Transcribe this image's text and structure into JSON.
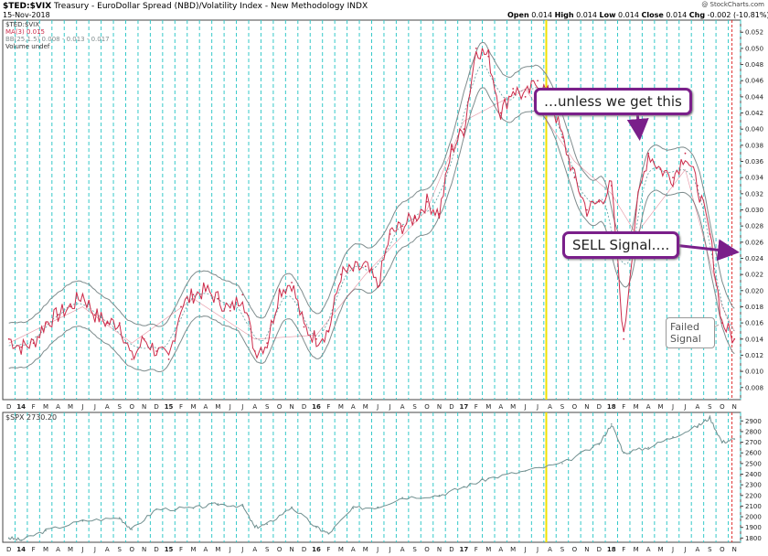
{
  "header": {
    "symbol": "$TED:$VIX",
    "description": "Treasury - EuroDollar Spread (NBD)/Volatility Index - New Methodology INDX",
    "date": "15-Nov-2018",
    "watermark": "@ StockCharts.com",
    "ohlc": {
      "open_label": "Open",
      "open": "0.014",
      "high_label": "High",
      "high": "0.014",
      "low_label": "Low",
      "low": "0.014",
      "close_label": "Close",
      "close": "0.014",
      "chg_label": "Chg",
      "chg": "-0.002 (-10.81%)"
    }
  },
  "legend": {
    "main": "$TED:$VIX",
    "ma": "MA(3) 0.015",
    "bb": "BB(25,1.5) 0.008 - 0.013 - 0.017",
    "volume": "Volume undef"
  },
  "lower_panel": {
    "label": "$SPX 2730.20"
  },
  "annotations": {
    "unless": "…unless we get this",
    "sell": "SELL Signal….",
    "failed": "Failed Signal"
  },
  "colors": {
    "ratio_line": "#cc2b4a",
    "bands": "#7f8c8d",
    "mid_band": "#5f9ea0",
    "spx_line": "#6f8f8f",
    "vgrid": "#36c9c9",
    "highlight": "#f2e100",
    "callout": "#7a1f8a",
    "red_marker": "#e03030"
  },
  "x_axis_labels": [
    "D",
    "14",
    "F",
    "M",
    "A",
    "M",
    "J",
    "J",
    "A",
    "S",
    "O",
    "N",
    "D",
    "15",
    "F",
    "M",
    "A",
    "M",
    "J",
    "J",
    "A",
    "S",
    "O",
    "N",
    "D",
    "16",
    "F",
    "M",
    "A",
    "M",
    "J",
    "J",
    "A",
    "S",
    "O",
    "N",
    "D",
    "17",
    "F",
    "M",
    "A",
    "M",
    "J",
    "J",
    "A",
    "S",
    "O",
    "N",
    "D",
    "18",
    "F",
    "M",
    "A",
    "M",
    "J",
    "J",
    "A",
    "S",
    "O",
    "N"
  ],
  "bold_x_labels": [
    "14",
    "15",
    "16",
    "17",
    "18"
  ],
  "chart_data": [
    {
      "type": "line",
      "title": "$TED:$VIX",
      "x_range": [
        "2013-12",
        "2018-11"
      ],
      "ylim": [
        0.0065,
        0.0535
      ],
      "y_ticks": [
        "0.008",
        "0.010",
        "0.012",
        "0.014",
        "0.016",
        "0.018",
        "0.020",
        "0.022",
        "0.024",
        "0.026",
        "0.028",
        "0.030",
        "0.032",
        "0.034",
        "0.036",
        "0.038",
        "0.040",
        "0.042",
        "0.044",
        "0.046",
        "0.048",
        "0.050",
        "0.052",
        "0.054"
      ],
      "series": [
        {
          "name": "$TED:$VIX",
          "x": [
            "2013-12",
            "2014-01",
            "2014-02",
            "2014-03",
            "2014-04",
            "2014-05",
            "2014-06",
            "2014-07",
            "2014-08",
            "2014-09",
            "2014-10",
            "2014-11",
            "2014-12",
            "2015-01",
            "2015-02",
            "2015-03",
            "2015-04",
            "2015-05",
            "2015-06",
            "2015-07",
            "2015-08",
            "2015-09",
            "2015-10",
            "2015-11",
            "2015-12",
            "2016-01",
            "2016-02",
            "2016-03",
            "2016-04",
            "2016-05",
            "2016-06",
            "2016-07",
            "2016-08",
            "2016-09",
            "2016-10",
            "2016-11",
            "2016-12",
            "2017-01",
            "2017-02",
            "2017-03",
            "2017-04",
            "2017-05",
            "2017-06",
            "2017-07",
            "2017-08",
            "2017-09",
            "2017-10",
            "2017-11",
            "2017-12",
            "2018-01",
            "2018-02",
            "2018-03",
            "2018-04",
            "2018-05",
            "2018-06",
            "2018-07",
            "2018-08",
            "2018-09",
            "2018-10",
            "2018-11"
          ],
          "values": [
            0.014,
            0.013,
            0.0135,
            0.016,
            0.017,
            0.018,
            0.0195,
            0.017,
            0.016,
            0.016,
            0.0115,
            0.014,
            0.0125,
            0.0115,
            0.018,
            0.0195,
            0.02,
            0.019,
            0.0175,
            0.0195,
            0.0125,
            0.0135,
            0.02,
            0.021,
            0.0155,
            0.014,
            0.015,
            0.022,
            0.0225,
            0.023,
            0.0205,
            0.027,
            0.028,
            0.029,
            0.031,
            0.0295,
            0.0375,
            0.04,
            0.05,
            0.049,
            0.042,
            0.045,
            0.044,
            0.046,
            0.044,
            0.039,
            0.034,
            0.03,
            0.031,
            0.033,
            0.014,
            0.03,
            0.037,
            0.035,
            0.034,
            0.037,
            0.033,
            0.027,
            0.016,
            0.014
          ]
        },
        {
          "name": "MA(3)",
          "x": [
            "2013-12",
            "2014-06",
            "2014-10",
            "2015-03",
            "2015-08",
            "2016-01",
            "2016-05",
            "2016-10",
            "2017-01",
            "2017-06",
            "2017-10",
            "2018-01",
            "2018-03",
            "2018-07",
            "2018-10",
            "2018-11"
          ],
          "values": [
            0.0135,
            0.018,
            0.0135,
            0.019,
            0.014,
            0.0145,
            0.022,
            0.03,
            0.041,
            0.045,
            0.036,
            0.032,
            0.027,
            0.035,
            0.018,
            0.015
          ]
        }
      ]
    },
    {
      "type": "line",
      "title": "$SPX 2730.20",
      "x_range": [
        "2013-12",
        "2018-11"
      ],
      "ylim": [
        1760,
        2980
      ],
      "y_ticks": [
        "1800",
        "1900",
        "2000",
        "2100",
        "2200",
        "2300",
        "2400",
        "2500",
        "2600",
        "2700",
        "2800",
        "2900"
      ],
      "series": [
        {
          "name": "$SPX",
          "x": [
            "2013-12",
            "2014-01",
            "2014-03",
            "2014-06",
            "2014-09",
            "2014-10",
            "2014-12",
            "2015-03",
            "2015-05",
            "2015-07",
            "2015-08",
            "2015-09",
            "2015-11",
            "2016-01",
            "2016-02",
            "2016-04",
            "2016-06",
            "2016-08",
            "2016-11",
            "2017-01",
            "2017-03",
            "2017-06",
            "2017-09",
            "2017-12",
            "2018-01",
            "2018-02",
            "2018-04",
            "2018-06",
            "2018-08",
            "2018-09",
            "2018-10",
            "2018-11"
          ],
          "values": [
            1800,
            1780,
            1870,
            1960,
            1990,
            1880,
            2070,
            2080,
            2120,
            2100,
            1900,
            1930,
            2090,
            1900,
            1840,
            2080,
            2090,
            2180,
            2200,
            2280,
            2360,
            2430,
            2500,
            2680,
            2870,
            2600,
            2650,
            2750,
            2850,
            2930,
            2700,
            2730
          ]
        }
      ]
    }
  ]
}
